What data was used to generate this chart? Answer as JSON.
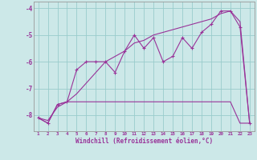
{
  "xlabel": "Windchill (Refroidissement éolien,°C)",
  "x": [
    1,
    2,
    3,
    4,
    5,
    6,
    7,
    8,
    9,
    10,
    11,
    12,
    13,
    14,
    15,
    16,
    17,
    18,
    19,
    20,
    21,
    22,
    23
  ],
  "line1": [
    -8.1,
    -8.3,
    -7.6,
    -7.5,
    -6.3,
    -6.0,
    -6.0,
    -6.0,
    -6.4,
    -5.6,
    -5.0,
    -5.5,
    -5.1,
    -6.0,
    -5.8,
    -5.1,
    -5.5,
    -4.9,
    -4.6,
    -4.1,
    -4.1,
    -4.7,
    -8.3
  ],
  "line2": [
    -8.1,
    -8.3,
    -7.6,
    -7.5,
    -7.5,
    -7.5,
    -7.5,
    -7.5,
    -7.5,
    -7.5,
    -7.5,
    -7.5,
    -7.5,
    -7.5,
    -7.5,
    -7.5,
    -7.5,
    -7.5,
    -7.5,
    -7.5,
    -7.5,
    -8.3,
    -8.3
  ],
  "line3": [
    -8.1,
    -8.2,
    -7.7,
    -7.5,
    -7.2,
    -6.8,
    -6.4,
    -6.0,
    -5.8,
    -5.6,
    -5.3,
    -5.2,
    -5.0,
    -4.9,
    -4.8,
    -4.7,
    -4.6,
    -4.5,
    -4.4,
    -4.2,
    -4.1,
    -4.5,
    -8.3
  ],
  "ylim": [
    -8.6,
    -3.75
  ],
  "yticks": [
    -8,
    -7,
    -6,
    -5,
    -4
  ],
  "xlim": [
    0.5,
    23.5
  ],
  "line_color": "#993399",
  "bg_color": "#cce8e8",
  "grid_color": "#99cccc",
  "spine_color": "#999999"
}
